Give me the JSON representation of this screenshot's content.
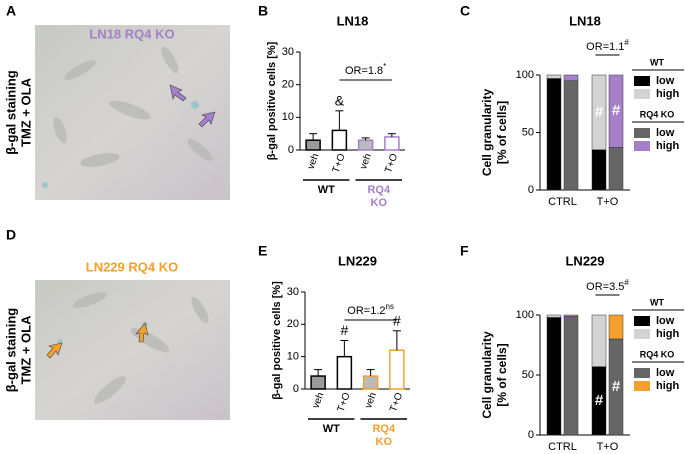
{
  "panels": [
    {
      "letter": "A",
      "title": "LN18 RQ4 KO",
      "title_color": "#a57fc9",
      "side_label": [
        "β-gal staining",
        "TMZ + OLA"
      ]
    },
    {
      "letter": "D",
      "title": "LN229 RQ4 KO",
      "title_color": "#f5a02c",
      "side_label": [
        "β-gal staining",
        "TMZ + OLA"
      ]
    }
  ],
  "chart_data": [
    {
      "type": "bar",
      "panel_label": "B",
      "title": "LN18",
      "ylabel": "β-gal positive cells [%]",
      "categories": [
        "veh",
        "T+O",
        "veh",
        "T+O"
      ],
      "values": [
        3,
        6,
        3,
        4
      ],
      "errors": [
        2,
        6,
        0.7,
        1
      ],
      "value_notes": [
        null,
        "&",
        null,
        null
      ],
      "colors": [
        "#9a9a9a",
        "#ffffff",
        "#bbbbbb",
        "#ffffff"
      ],
      "groups": [
        {
          "name": [
            "WT"
          ],
          "color": "#000000"
        },
        {
          "name": [
            "RQ4",
            "KO"
          ],
          "color": "#a57fc9"
        }
      ],
      "bracket": {
        "text": "OR=1.8",
        "sup": "*"
      },
      "ylim": [
        0,
        30
      ],
      "yticks": [
        0,
        10,
        20,
        30
      ]
    },
    {
      "type": "stacked_bar",
      "panel_label": "C",
      "title": "LN18",
      "ylabel": [
        "Cell granularity",
        "[% of cells]"
      ],
      "categories": [
        "CTRL",
        "T+O"
      ],
      "groups": [
        {
          "name": "WT",
          "series": [
            {
              "name": "low",
              "color": "#000000",
              "values": [
                97,
                35
              ],
              "value_notes": [
                null,
                null
              ]
            },
            {
              "name": "high",
              "color": "#d3d3d3",
              "values": [
                3,
                65
              ],
              "value_notes": [
                null,
                "#"
              ]
            }
          ]
        },
        {
          "name": "RQ4 KO",
          "series": [
            {
              "name": "low",
              "color": "#666666",
              "values": [
                95,
                37
              ],
              "value_notes": [
                null,
                null
              ]
            },
            {
              "name": "high",
              "color": "#a57fc9",
              "values": [
                5,
                63
              ],
              "value_notes": [
                null,
                "#"
              ]
            }
          ]
        }
      ],
      "bracket": {
        "text": "OR=1.1",
        "sup": "#"
      },
      "ylim": [
        0,
        100
      ],
      "yticks": [
        0,
        50,
        100
      ]
    },
    {
      "type": "bar",
      "panel_label": "E",
      "title": "LN229",
      "ylabel": "β-gal positive cells [%]",
      "categories": [
        "veh",
        "T+O",
        "veh",
        "T+O"
      ],
      "values": [
        4,
        10,
        4,
        12
      ],
      "errors": [
        2,
        5,
        2,
        6
      ],
      "value_notes": [
        null,
        "#",
        null,
        "#"
      ],
      "colors": [
        "#9a9a9a",
        "#ffffff",
        "#bbbbbb",
        "#ffffff"
      ],
      "groups": [
        {
          "name": [
            "WT"
          ],
          "color": "#000000"
        },
        {
          "name": [
            "RQ4",
            "KO"
          ],
          "color": "#f5a02c"
        }
      ],
      "bracket": {
        "text": "OR=1.2",
        "sup": "ns"
      },
      "ylim": [
        0,
        30
      ],
      "yticks": [
        0,
        10,
        20,
        30
      ]
    },
    {
      "type": "stacked_bar",
      "panel_label": "F",
      "title": "LN229",
      "ylabel": [
        "Cell granularity",
        "[% of cells]"
      ],
      "categories": [
        "CTRL",
        "T+O"
      ],
      "groups": [
        {
          "name": "WT",
          "series": [
            {
              "name": "low",
              "color": "#000000",
              "values": [
                98,
                57
              ],
              "value_notes": [
                null,
                "#"
              ]
            },
            {
              "name": "high",
              "color": "#d3d3d3",
              "values": [
                2,
                43
              ],
              "value_notes": [
                null,
                null
              ]
            }
          ]
        },
        {
          "name": "RQ4 KO",
          "series": [
            {
              "name": "low",
              "color": "#666666",
              "values": [
                99,
                80
              ],
              "value_notes": [
                null,
                "#"
              ]
            },
            {
              "name": "high",
              "color": "#f5a02c",
              "values": [
                1,
                20
              ],
              "value_notes": [
                null,
                null
              ]
            }
          ]
        }
      ],
      "bracket": {
        "text": "OR=3.5",
        "sup": "#"
      },
      "ylim": [
        0,
        100
      ],
      "yticks": [
        0,
        50,
        100
      ]
    }
  ]
}
